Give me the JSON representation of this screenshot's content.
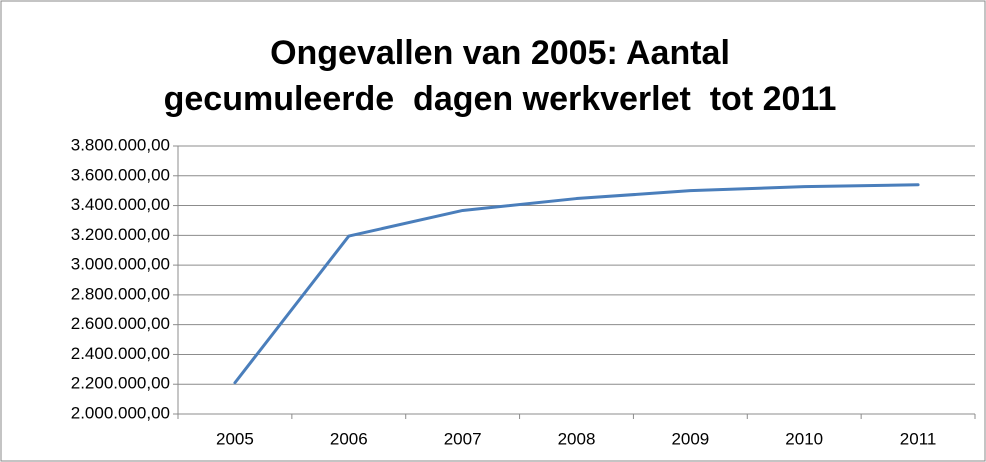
{
  "chart_data": {
    "type": "line",
    "title": [
      "Ongevallen van 2005: Aantal",
      "gecumuleerde  dagen werkverlet  tot 2011"
    ],
    "categories": [
      "2005",
      "2006",
      "2007",
      "2008",
      "2009",
      "2010",
      "2011"
    ],
    "series": [
      {
        "color": "#4a7ebb",
        "values": [
          2210000,
          3195000,
          3367000,
          3447000,
          3500000,
          3527000,
          3540000
        ]
      }
    ],
    "ylim": [
      2000000,
      3800000
    ],
    "yticks": [
      {
        "value": 2000000,
        "label": "2.000.000,00"
      },
      {
        "value": 2200000,
        "label": "2.200.000,00"
      },
      {
        "value": 2400000,
        "label": "2.400.000,00"
      },
      {
        "value": 2600000,
        "label": "2.600.000,00"
      },
      {
        "value": 2800000,
        "label": "2.800.000,00"
      },
      {
        "value": 3000000,
        "label": "3.000.000,00"
      },
      {
        "value": 3200000,
        "label": "3.200.000,00"
      },
      {
        "value": 3400000,
        "label": "3.400.000,00"
      },
      {
        "value": 3600000,
        "label": "3.600.000,00"
      },
      {
        "value": 3800000,
        "label": "3.800.000,00"
      }
    ],
    "grid": true
  }
}
